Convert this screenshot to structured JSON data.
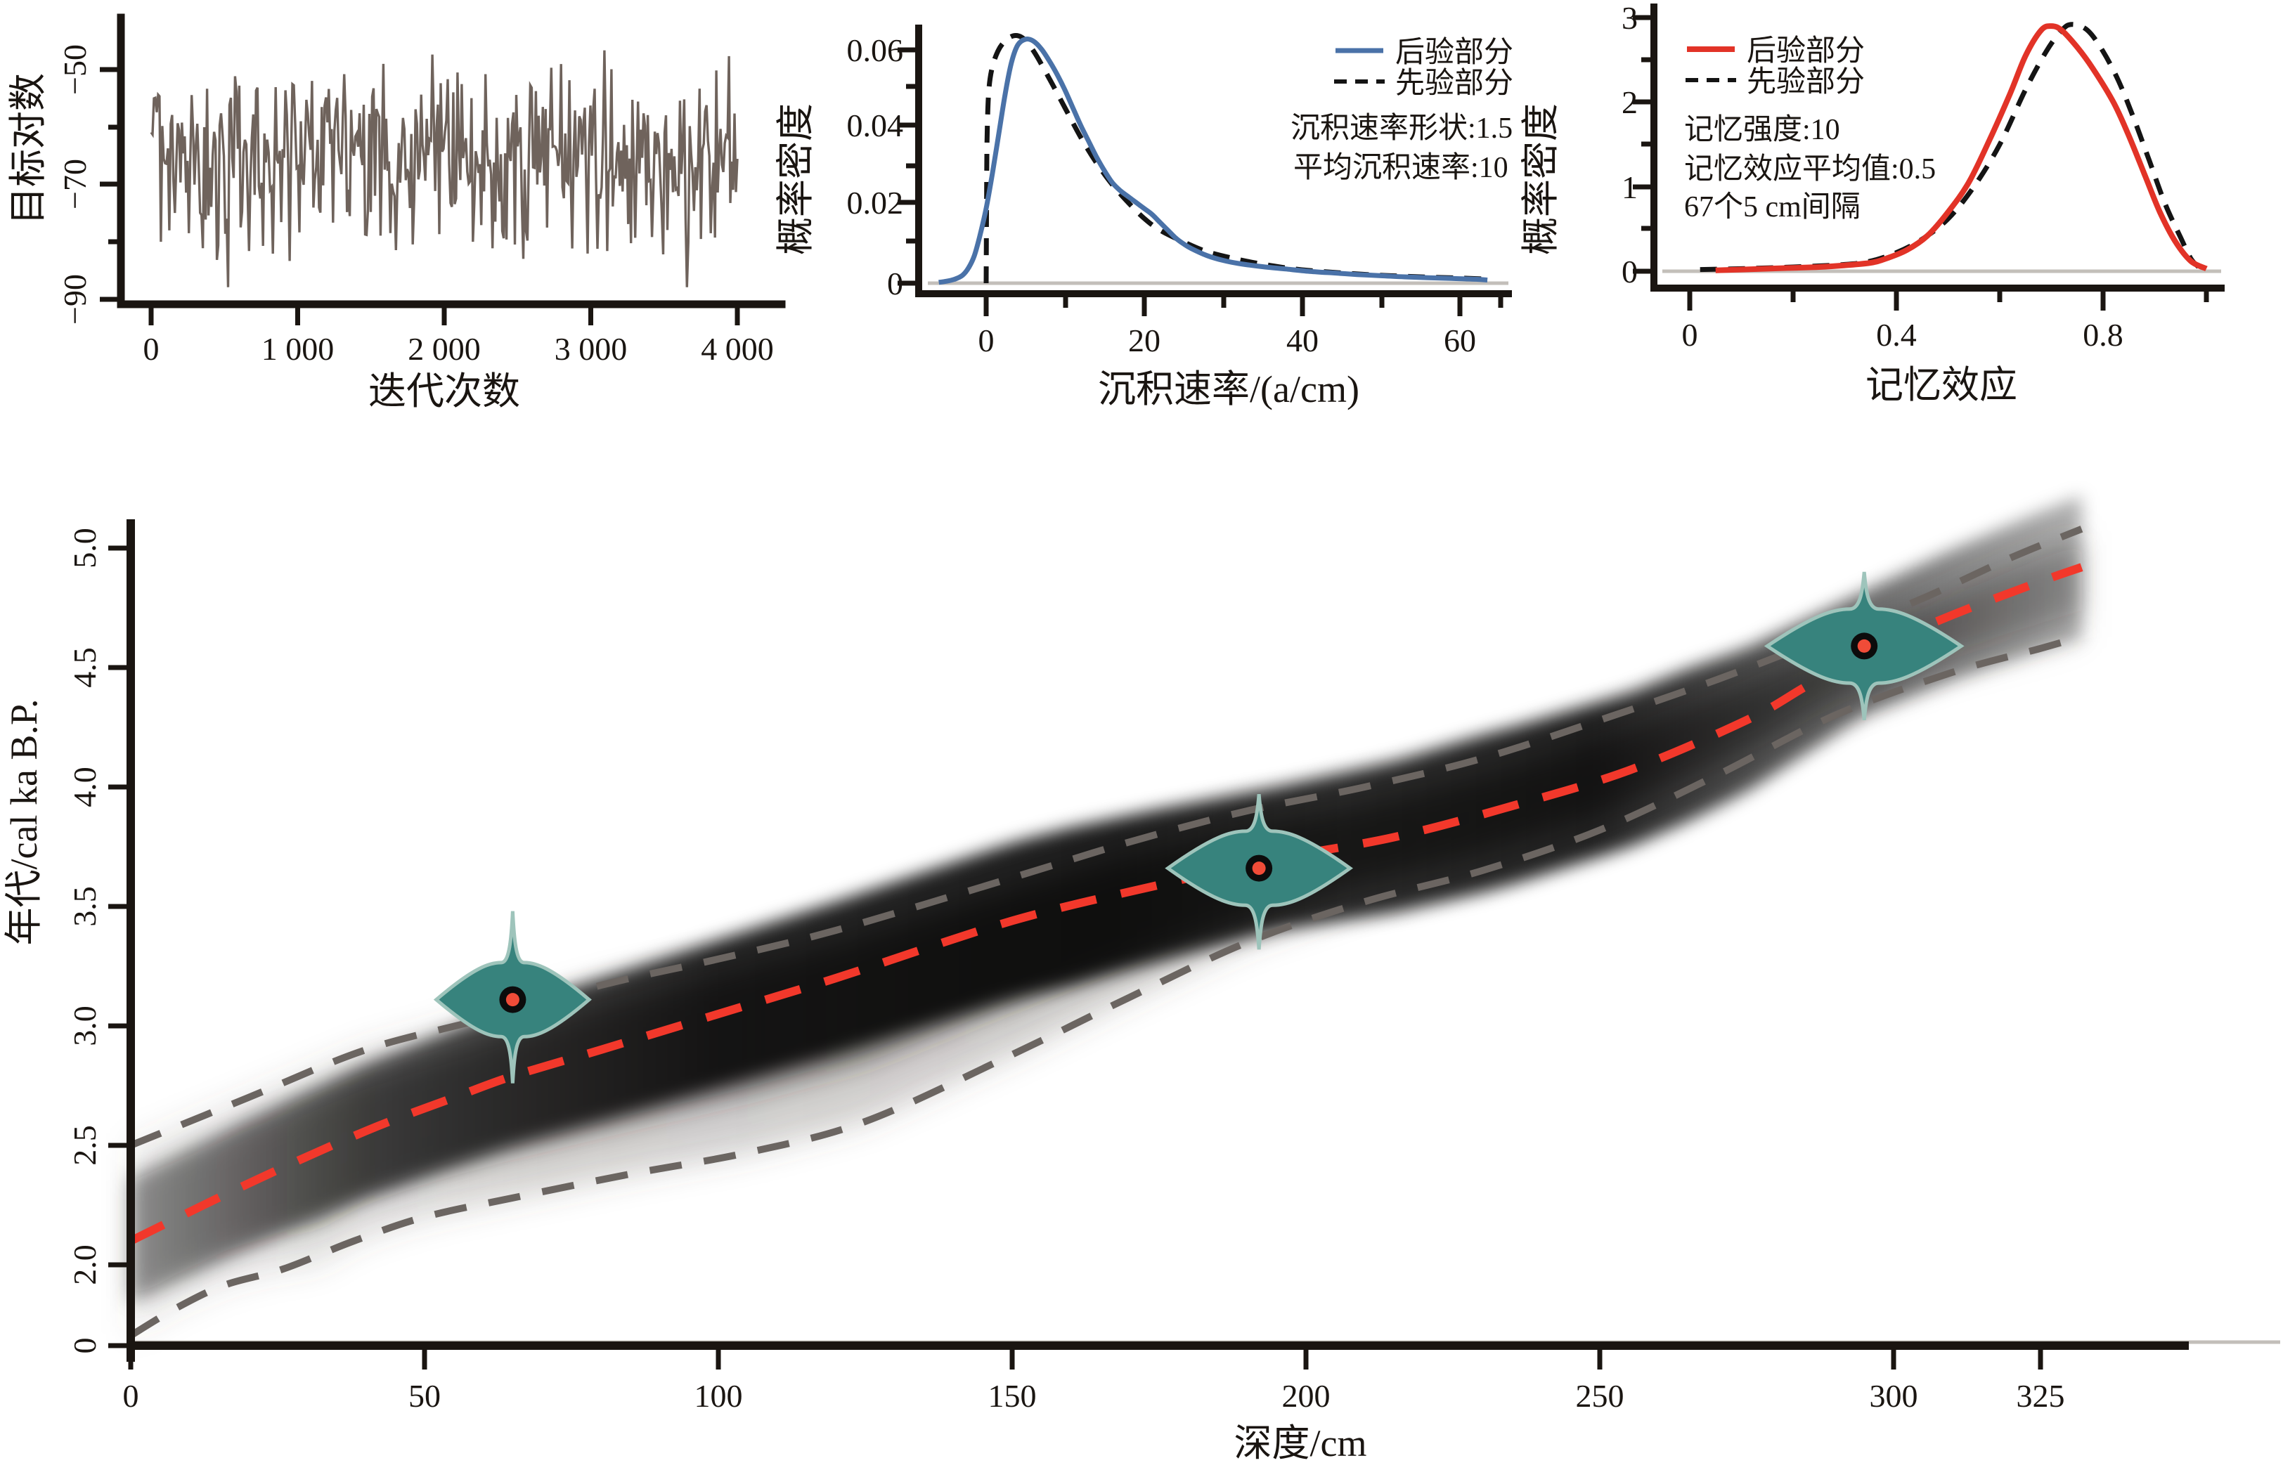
{
  "figure": {
    "background": "#ffffff"
  },
  "colors": {
    "trace": "#6f635c",
    "axis": "#1a1511",
    "posterior_blue": "#4a72a8",
    "posterior_red": "#e23327",
    "prior_dash": "#141414",
    "zero_line": "#c3bfba",
    "main_red_dash": "#f2382b",
    "main_grey_dash": "#6b6561",
    "cloud": "#000000",
    "violin_fill": "#37837d",
    "violin_stroke": "#9ec4bb",
    "marker_outer": "#0c0c0c",
    "marker_inner": "#f04c38"
  },
  "plot1": {
    "ylabel": "目标对数",
    "xlabel": "迭代次数",
    "yticks": [
      "−50",
      "−70",
      "−90"
    ],
    "xticks": [
      "0",
      "1 000",
      "2 000",
      "3 000",
      "4 000"
    ]
  },
  "plot2": {
    "ylabel": "概率密度",
    "xlabel": "沉积速率/(a/cm)",
    "yticks": [
      "0.06",
      "0.04",
      "0.02",
      "0"
    ],
    "xticks": [
      "0",
      "20",
      "40",
      "60"
    ],
    "legend_posterior": "后验部分",
    "legend_prior": "先验部分",
    "info1": "沉积速率形状:1.5",
    "info2": "平均沉积速率:10"
  },
  "plot3": {
    "ylabel": "概率密度",
    "xlabel": "记忆效应",
    "yticks": [
      "3",
      "2",
      "1",
      "0"
    ],
    "xticks": [
      "0",
      "0.4",
      "0.8"
    ],
    "legend_posterior": "后验部分",
    "legend_prior": "先验部分",
    "info1": "记忆强度:10",
    "info2": "记忆效应平均值:0.5",
    "info3": "67个5 cm间隔"
  },
  "main": {
    "ylabel": "年代/cal ka B.P.",
    "xlabel": "深度/cm",
    "yticks": [
      "0",
      "2.0",
      "2.5",
      "3.0",
      "3.5",
      "4.0",
      "4.5",
      "5.0"
    ],
    "xticks": [
      "0",
      "50",
      "100",
      "150",
      "200",
      "250",
      "300",
      "325"
    ]
  },
  "chart_data": [
    {
      "type": "line",
      "name": "mcmc_trace",
      "title": "",
      "xlabel": "迭代次数",
      "ylabel": "目标对数",
      "xlim": [
        0,
        4000
      ],
      "ylim": [
        -90,
        -45
      ],
      "x_ticks": [
        0,
        1000,
        2000,
        3000,
        4000
      ],
      "y_ticks": [
        -50,
        -70,
        -90
      ],
      "description": "stationary MCMC noise trace oscillating between about -88 and -46, mean about -66",
      "seed": 20240715,
      "n_points": 420
    },
    {
      "type": "line",
      "name": "accumulation_rate",
      "xlabel": "沉积速率/(a/cm)",
      "ylabel": "概率密度",
      "xlim": [
        -8,
        65
      ],
      "ylim": [
        0,
        0.065
      ],
      "x_ticks": [
        0,
        20,
        40,
        60
      ],
      "y_ticks": [
        0,
        0.02,
        0.04,
        0.06
      ],
      "acc_shape": 1.5,
      "acc_mean": 10,
      "series": [
        {
          "name": "后验部分",
          "points": [
            [
              -6,
              0.0002
            ],
            [
              -5,
              0.0005
            ],
            [
              -4,
              0.001
            ],
            [
              -3,
              0.002
            ],
            [
              -2.2,
              0.004
            ],
            [
              -1.5,
              0.007
            ],
            [
              -0.8,
              0.012
            ],
            [
              0,
              0.019
            ],
            [
              0.8,
              0.028
            ],
            [
              1.6,
              0.038
            ],
            [
              2.4,
              0.048
            ],
            [
              3.2,
              0.056
            ],
            [
              4,
              0.0605
            ],
            [
              5,
              0.062
            ],
            [
              6,
              0.0615
            ],
            [
              7,
              0.0595
            ],
            [
              8,
              0.0565
            ],
            [
              9,
              0.053
            ],
            [
              10,
              0.049
            ],
            [
              11,
              0.0445
            ],
            [
              12,
              0.04
            ],
            [
              13,
              0.036
            ],
            [
              14,
              0.032
            ],
            [
              15,
              0.0285
            ],
            [
              16,
              0.0255
            ],
            [
              17,
              0.0235
            ],
            [
              18,
              0.022
            ],
            [
              19,
              0.0205
            ],
            [
              20,
              0.019
            ],
            [
              21,
              0.0175
            ],
            [
              22,
              0.0155
            ],
            [
              23,
              0.0135
            ],
            [
              24,
              0.0115
            ],
            [
              25,
              0.01
            ],
            [
              26,
              0.0088
            ],
            [
              28,
              0.007
            ],
            [
              30,
              0.0058
            ],
            [
              32,
              0.005
            ],
            [
              35,
              0.0042
            ],
            [
              38,
              0.0036
            ],
            [
              41,
              0.003
            ],
            [
              44,
              0.0026
            ],
            [
              47,
              0.0022
            ],
            [
              50,
              0.0019
            ],
            [
              53,
              0.0016
            ],
            [
              56,
              0.0014
            ],
            [
              59,
              0.0012
            ],
            [
              62,
              0.001
            ],
            [
              63.5,
              0.0008
            ]
          ]
        },
        {
          "name": "先验部分",
          "points": [
            [
              0,
              0.0
            ],
            [
              0.05,
              0.02
            ],
            [
              0.15,
              0.04
            ],
            [
              0.5,
              0.052
            ],
            [
              1.5,
              0.059
            ],
            [
              3,
              0.0625
            ],
            [
              4.5,
              0.0625
            ],
            [
              6,
              0.059
            ],
            [
              8,
              0.052
            ],
            [
              10,
              0.0445
            ],
            [
              12,
              0.037
            ],
            [
              14,
              0.0305
            ],
            [
              16,
              0.025
            ],
            [
              18,
              0.0205
            ],
            [
              20,
              0.0165
            ],
            [
              22,
              0.0135
            ],
            [
              25,
              0.0105
            ],
            [
              28,
              0.008
            ],
            [
              32,
              0.006
            ],
            [
              36,
              0.0045
            ],
            [
              40,
              0.0034
            ],
            [
              45,
              0.0026
            ],
            [
              50,
              0.002
            ],
            [
              55,
              0.0016
            ],
            [
              60,
              0.0013
            ],
            [
              64,
              0.001
            ]
          ]
        }
      ]
    },
    {
      "type": "line",
      "name": "memory",
      "xlabel": "记忆效应",
      "ylabel": "概率密度",
      "xlim": [
        0,
        1.02
      ],
      "ylim": [
        0,
        3
      ],
      "x_ticks": [
        0,
        0.4,
        0.8
      ],
      "y_ticks": [
        0,
        1,
        2,
        3
      ],
      "mem_strength": 10,
      "mem_mean": 0.5,
      "sections": "67个5 cm间隔",
      "series": [
        {
          "name": "后验部分",
          "points": [
            [
              0.05,
              0.01
            ],
            [
              0.1,
              0.02
            ],
            [
              0.15,
              0.03
            ],
            [
              0.2,
              0.04
            ],
            [
              0.25,
              0.05
            ],
            [
              0.3,
              0.07
            ],
            [
              0.35,
              0.1
            ],
            [
              0.38,
              0.15
            ],
            [
              0.42,
              0.25
            ],
            [
              0.46,
              0.42
            ],
            [
              0.5,
              0.7
            ],
            [
              0.54,
              1.05
            ],
            [
              0.58,
              1.55
            ],
            [
              0.62,
              2.1
            ],
            [
              0.65,
              2.55
            ],
            [
              0.68,
              2.85
            ],
            [
              0.7,
              2.9
            ],
            [
              0.72,
              2.85
            ],
            [
              0.75,
              2.65
            ],
            [
              0.78,
              2.4
            ],
            [
              0.82,
              2.0
            ],
            [
              0.85,
              1.6
            ],
            [
              0.88,
              1.15
            ],
            [
              0.91,
              0.7
            ],
            [
              0.94,
              0.35
            ],
            [
              0.97,
              0.12
            ],
            [
              1.0,
              0.03
            ]
          ]
        },
        {
          "name": "先验部分",
          "points": [
            [
              0.02,
              0.02
            ],
            [
              0.1,
              0.03
            ],
            [
              0.2,
              0.05
            ],
            [
              0.3,
              0.08
            ],
            [
              0.35,
              0.12
            ],
            [
              0.4,
              0.22
            ],
            [
              0.45,
              0.38
            ],
            [
              0.5,
              0.62
            ],
            [
              0.55,
              1.0
            ],
            [
              0.6,
              1.5
            ],
            [
              0.65,
              2.15
            ],
            [
              0.69,
              2.6
            ],
            [
              0.72,
              2.85
            ],
            [
              0.74,
              2.92
            ],
            [
              0.77,
              2.85
            ],
            [
              0.8,
              2.6
            ],
            [
              0.83,
              2.25
            ],
            [
              0.86,
              1.8
            ],
            [
              0.89,
              1.3
            ],
            [
              0.92,
              0.8
            ],
            [
              0.95,
              0.4
            ],
            [
              0.97,
              0.15
            ],
            [
              0.985,
              0.05
            ]
          ]
        }
      ]
    },
    {
      "type": "line",
      "name": "age_depth_model",
      "xlabel": "深度/cm",
      "ylabel": "年代/cal ka B.P.",
      "xlim": [
        0,
        348
      ],
      "ylim_display": [
        0,
        5.15
      ],
      "x_ticks": [
        0,
        50,
        100,
        150,
        200,
        250,
        300,
        325
      ],
      "y_ticks": [
        0,
        2.0,
        2.5,
        3.0,
        3.5,
        4.0,
        4.5,
        5.0
      ],
      "axis_note": "y axis compressed between 0 and 2.0",
      "mean_line": [
        [
          0,
          2.1
        ],
        [
          20,
          2.34
        ],
        [
          40,
          2.56
        ],
        [
          55,
          2.7
        ],
        [
          65,
          2.79
        ],
        [
          80,
          2.9
        ],
        [
          100,
          3.05
        ],
        [
          120,
          3.2
        ],
        [
          150,
          3.44
        ],
        [
          175,
          3.59
        ],
        [
          195,
          3.7
        ],
        [
          215,
          3.79
        ],
        [
          235,
          3.92
        ],
        [
          255,
          4.07
        ],
        [
          275,
          4.28
        ],
        [
          285,
          4.42
        ],
        [
          295,
          4.56
        ],
        [
          310,
          4.72
        ],
        [
          325,
          4.86
        ],
        [
          332,
          4.92
        ]
      ],
      "upper_ci": [
        [
          0,
          2.5
        ],
        [
          20,
          2.7
        ],
        [
          40,
          2.9
        ],
        [
          60,
          3.03
        ],
        [
          80,
          3.17
        ],
        [
          100,
          3.28
        ],
        [
          120,
          3.4
        ],
        [
          150,
          3.62
        ],
        [
          170,
          3.77
        ],
        [
          190,
          3.9
        ],
        [
          210,
          4.0
        ],
        [
          230,
          4.12
        ],
        [
          250,
          4.28
        ],
        [
          270,
          4.45
        ],
        [
          290,
          4.64
        ],
        [
          305,
          4.79
        ],
        [
          320,
          4.96
        ],
        [
          332,
          5.08
        ]
      ],
      "lower_ci": [
        [
          0,
          0.25
        ],
        [
          8,
          0.95
        ],
        [
          16,
          1.5
        ],
        [
          26,
          1.9
        ],
        [
          38,
          2.1
        ],
        [
          50,
          2.2
        ],
        [
          65,
          2.28
        ],
        [
          85,
          2.38
        ],
        [
          105,
          2.47
        ],
        [
          125,
          2.6
        ],
        [
          150,
          2.88
        ],
        [
          170,
          3.12
        ],
        [
          190,
          3.35
        ],
        [
          210,
          3.52
        ],
        [
          230,
          3.65
        ],
        [
          250,
          3.82
        ],
        [
          270,
          4.05
        ],
        [
          290,
          4.3
        ],
        [
          310,
          4.48
        ],
        [
          325,
          4.58
        ],
        [
          332,
          4.63
        ]
      ],
      "dated_samples": [
        {
          "depth": 65,
          "age": 3.11,
          "age_min": 2.76,
          "age_max": 3.48,
          "half_width_cm": 13
        },
        {
          "depth": 192,
          "age": 3.66,
          "age_min": 3.32,
          "age_max": 3.97,
          "half_width_cm": 15.5
        },
        {
          "depth": 295,
          "age": 4.59,
          "age_min": 4.28,
          "age_max": 4.9,
          "half_width_cm": 16.5
        }
      ],
      "core_band_halfwidth_ka": [
        [
          0,
          0.26
        ],
        [
          40,
          0.28
        ],
        [
          80,
          0.3
        ],
        [
          120,
          0.32
        ],
        [
          160,
          0.33
        ],
        [
          195,
          0.3
        ],
        [
          230,
          0.33
        ],
        [
          265,
          0.32
        ],
        [
          295,
          0.26
        ],
        [
          315,
          0.28
        ],
        [
          332,
          0.3
        ]
      ]
    }
  ]
}
